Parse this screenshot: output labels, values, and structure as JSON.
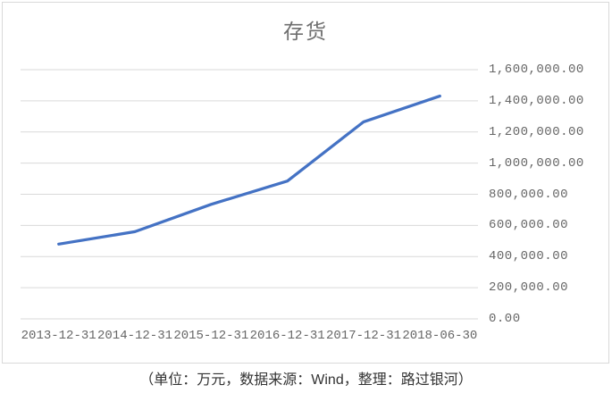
{
  "chart": {
    "title": "存货"
  },
  "caption": {
    "text": "（单位：万元，数据来源：Wind，整理：路过银河）"
  },
  "chart_data": {
    "type": "line",
    "title": "存货",
    "categories": [
      "2013-12-31",
      "2014-12-31",
      "2015-12-31",
      "2016-12-31",
      "2017-12-31",
      "2018-06-30"
    ],
    "series": [
      {
        "name": "存货",
        "values": [
          480000,
          560000,
          735000,
          885000,
          1265000,
          1430000
        ]
      }
    ],
    "xlabel": "",
    "ylabel": "",
    "ylim": [
      0,
      1600000
    ],
    "ytick_step": 200000,
    "y_tick_labels": [
      "0.00",
      "200,000.00",
      "400,000.00",
      "600,000.00",
      "800,000.00",
      "1,000,000.00",
      "1,200,000.00",
      "1,400,000.00",
      "1,600,000.00"
    ],
    "grid": true,
    "legend_position": "none",
    "y_axis_side": "right",
    "line_color": "#4472c4",
    "gridline_color": "#d9d9d9",
    "tick_label_color": "#666666",
    "title_color": "#6f6f6f",
    "frame_border_color": "#d9d9d9"
  }
}
